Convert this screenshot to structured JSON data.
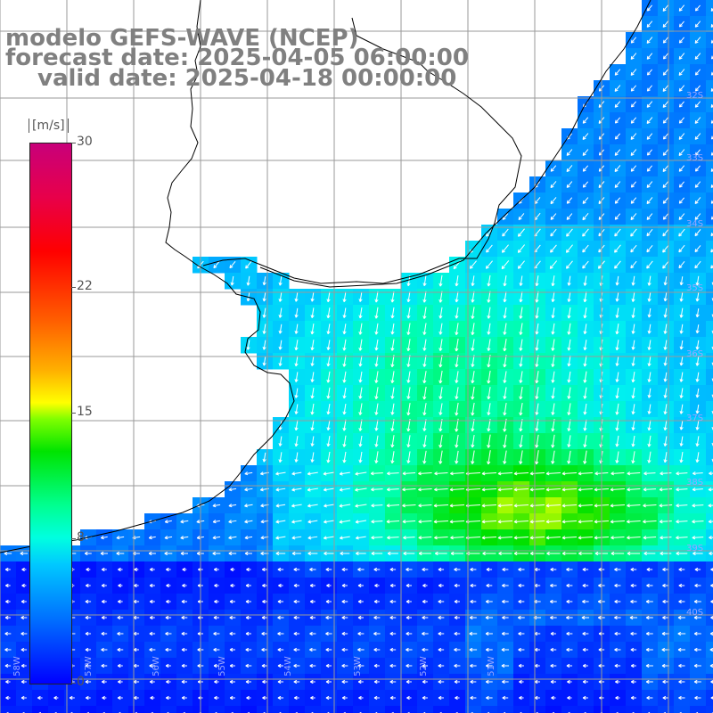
{
  "title": {
    "line1": "modelo GEFS-WAVE (NCEP)",
    "line2": "forecast date: 2025-04-05 06:00:00",
    "line3": "valid date: 2025-04-18 00:00:00"
  },
  "colorbar": {
    "unit": "[m/s]",
    "min": 0,
    "max": 30,
    "ticks": [
      {
        "label": "30",
        "value": 30
      },
      {
        "label": "22",
        "value": 22
      },
      {
        "label": "15",
        "value": 15
      },
      {
        "label": "8",
        "value": 8
      },
      {
        "label": "0",
        "value": 0
      }
    ]
  },
  "map": {
    "field": "wind speed",
    "colors": {
      "ocean_low": "#0000ff",
      "ocean_mid": "#00c8ff",
      "ocean_high": "#00e400",
      "land": "#ffffff",
      "grid": "#9a9a9a",
      "coast": "#000000",
      "arrows": "#ffffff"
    },
    "latitude_labels": [
      "32S",
      "33S",
      "34S",
      "35S",
      "36S",
      "37S",
      "38S",
      "39S",
      "40S"
    ],
    "longitude_labels": [
      "58W",
      "57W",
      "56W",
      "55W",
      "54W",
      "53W",
      "52W",
      "51W"
    ]
  }
}
